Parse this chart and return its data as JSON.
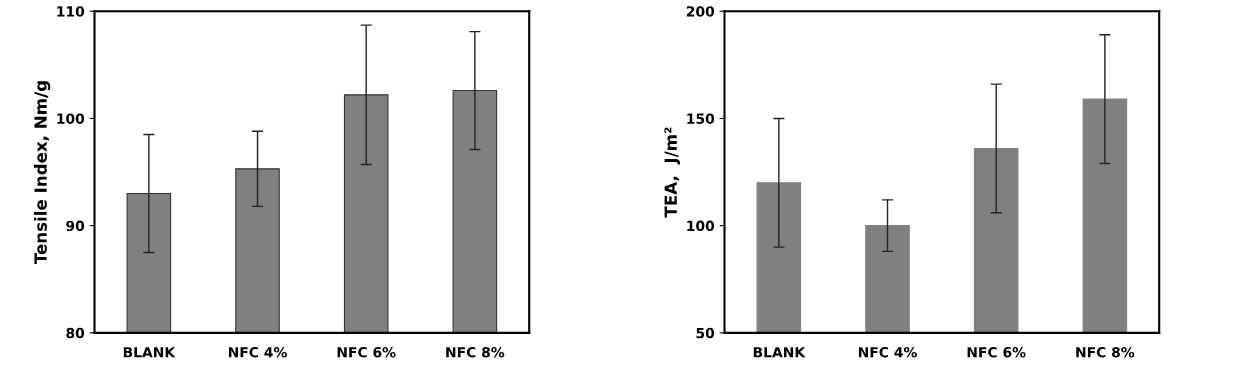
{
  "chart_data": [
    {
      "type": "bar",
      "ylabel": "Tensile Index, Nm/g",
      "categories": [
        "BLANK",
        "NFC 4%",
        "NFC 6%",
        "NFC 8%"
      ],
      "values": [
        93.0,
        95.3,
        102.2,
        102.6
      ],
      "errors": [
        5.5,
        3.5,
        6.5,
        5.5
      ],
      "color": "#808080",
      "ylim": [
        80,
        110
      ],
      "yticks": [
        80,
        90,
        100,
        110
      ],
      "grid": false
    },
    {
      "type": "bar",
      "ylabel": "TEA,  J/m²",
      "categories": [
        "BLANK",
        "NFC 4%",
        "NFC 6%",
        "NFC 8%"
      ],
      "values": [
        120,
        100,
        136,
        159
      ],
      "errors": [
        30,
        12,
        30,
        30
      ],
      "color": "#808080",
      "ylim": [
        50,
        200
      ],
      "yticks": [
        50,
        100,
        150,
        200
      ],
      "grid": false
    }
  ]
}
